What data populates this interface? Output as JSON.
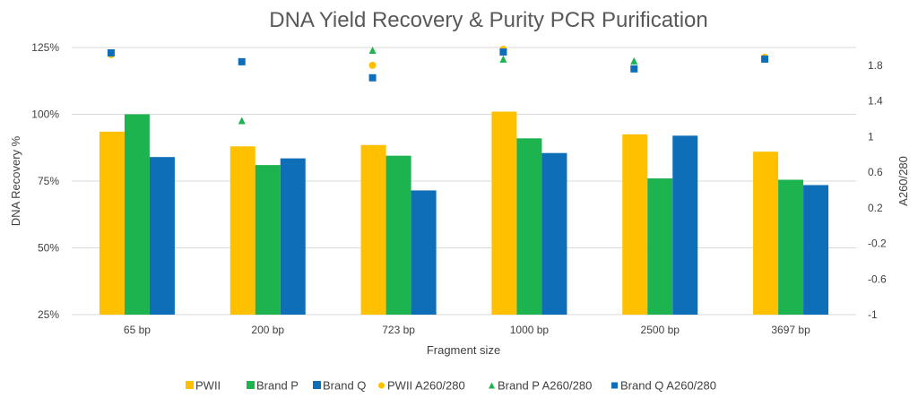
{
  "chart_data": {
    "type": "bar",
    "title": "DNA Yield Recovery & Purity PCR Purification",
    "xlabel": "Fragment size",
    "ylabel": "DNA Recovery %",
    "y2label": "A260/280",
    "categories": [
      "65 bp",
      "200 bp",
      "723 bp",
      "1000 bp",
      "2500 bp",
      "3697 bp"
    ],
    "ylim": [
      25,
      125
    ],
    "yticks": [
      "25%",
      "50%",
      "75%",
      "100%",
      "125%"
    ],
    "y2lim": [
      -1,
      2
    ],
    "y2ticks": [
      "-1",
      "-0.6",
      "-0.2",
      "0.2",
      "0.6",
      "1",
      "1.4",
      "1.8"
    ],
    "grid": true,
    "legend": "bottom",
    "series": [
      {
        "name": "PWII",
        "kind": "bar",
        "axis": "left",
        "color": "#FFC000",
        "values": [
          93.5,
          88,
          88.5,
          101,
          92.5,
          86
        ]
      },
      {
        "name": "Brand P",
        "kind": "bar",
        "axis": "left",
        "color": "#1DB34F",
        "values": [
          100,
          81,
          84.5,
          91,
          76,
          75.5
        ]
      },
      {
        "name": "Brand Q",
        "kind": "bar",
        "axis": "left",
        "color": "#0E6EB8",
        "values": [
          84,
          83.5,
          71.5,
          85.5,
          92,
          73.5
        ]
      },
      {
        "name": "PWII A260/280",
        "kind": "marker",
        "marker": "circle",
        "axis": "right",
        "color": "#FFC000",
        "values": [
          1.92,
          null,
          1.8,
          1.98,
          null,
          1.89
        ]
      },
      {
        "name": "Brand P A260/280",
        "kind": "marker",
        "marker": "triangle",
        "axis": "right",
        "color": "#1DB34F",
        "values": [
          null,
          1.18,
          1.97,
          1.87,
          1.85,
          null
        ]
      },
      {
        "name": "Brand Q A260/280",
        "kind": "marker",
        "marker": "square",
        "axis": "right",
        "color": "#0E6EB8",
        "values": [
          1.94,
          1.84,
          1.66,
          1.95,
          1.76,
          1.87
        ]
      }
    ]
  }
}
